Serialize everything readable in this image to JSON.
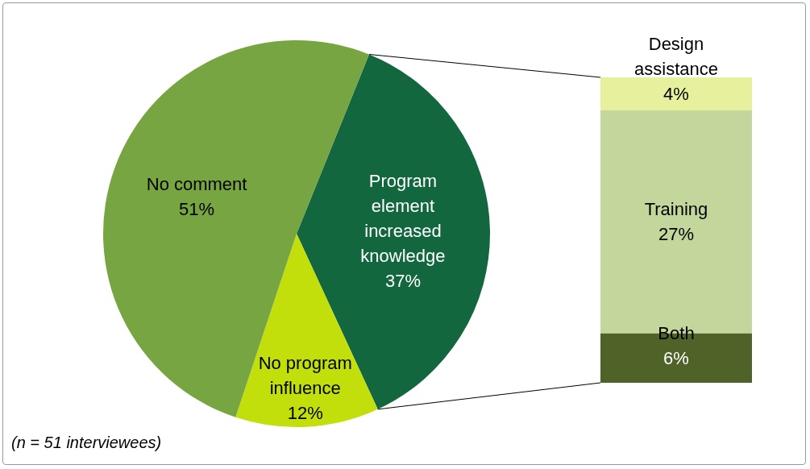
{
  "chart_data": [
    {
      "type": "pie",
      "categories": [
        "Program element increased knowledge",
        "No program influence",
        "No comment"
      ],
      "values": [
        37,
        12,
        51
      ],
      "colors": [
        "#12673f",
        "#c2df0b",
        "#77a541"
      ],
      "value_labels": [
        "37%",
        "12%",
        "51%"
      ],
      "legend": false,
      "annotations": [
        "(n = 51 interviewees)"
      ]
    },
    {
      "type": "bar",
      "stacked": true,
      "categories": [
        null
      ],
      "legend": false,
      "series": [
        {
          "name": "Both",
          "color": "#4f6228",
          "values": [
            6
          ],
          "value_labels": [
            "6%"
          ]
        },
        {
          "name": "Training",
          "color": "#c3d69b",
          "values": [
            27
          ],
          "value_labels": [
            "27%"
          ]
        },
        {
          "name": "Design assistance",
          "color": "#e7f09c",
          "values": [
            4
          ],
          "value_labels": [
            "4%"
          ]
        }
      ]
    }
  ]
}
